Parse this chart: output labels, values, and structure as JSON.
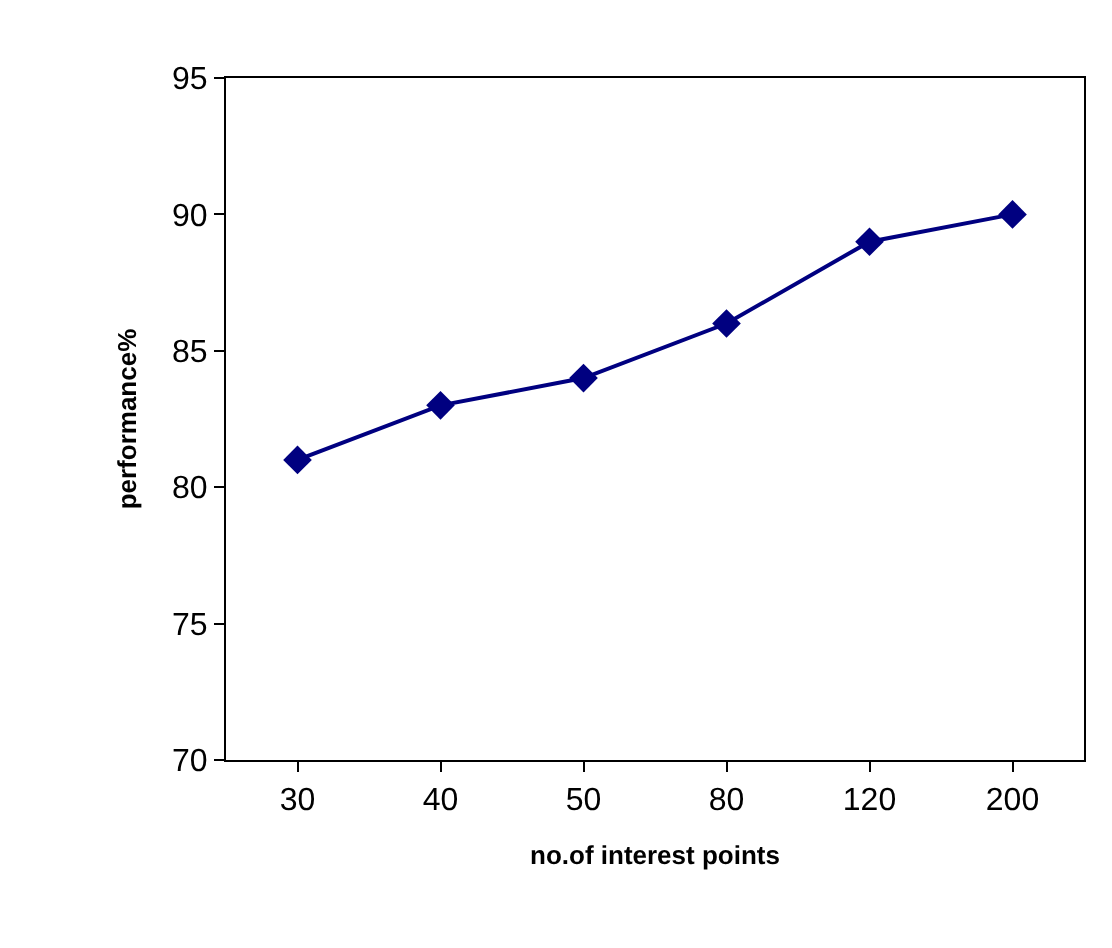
{
  "chart_data": {
    "type": "line",
    "xlabel": "no.of interest points",
    "ylabel": "performance%",
    "categories": [
      "30",
      "40",
      "50",
      "80",
      "120",
      "200"
    ],
    "series": [
      {
        "color": "#000080",
        "values": [
          81,
          83,
          84,
          86,
          89,
          90
        ]
      }
    ],
    "ylim": [
      70,
      95
    ],
    "yticks": [
      70,
      75,
      80,
      85,
      90,
      95
    ],
    "grid": false,
    "marker": "diamond",
    "line_style": "solid"
  }
}
